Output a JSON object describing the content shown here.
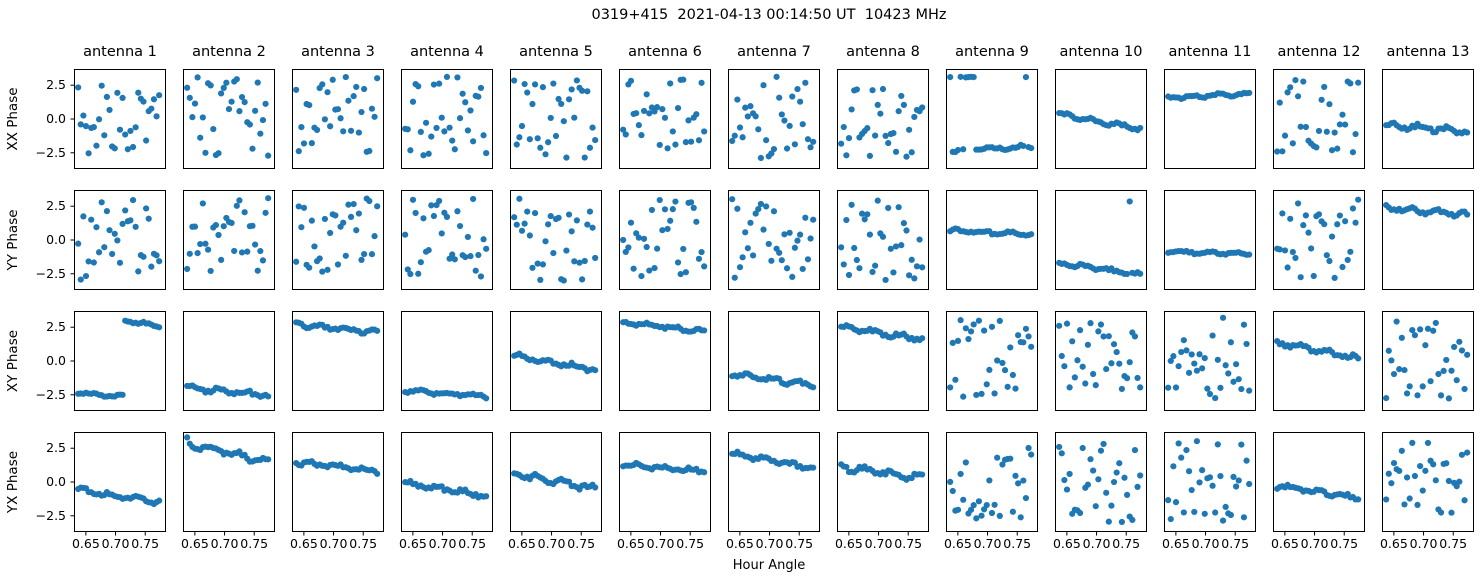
{
  "title": "0319+415  2021-04-13 00:14:50 UT  10423 MHz",
  "chart_data": {
    "type": "scatter",
    "layout": "grid-4x13",
    "rows": [
      "XX Phase",
      "YY Phase",
      "XY Phase",
      "YX Phase"
    ],
    "columns": [
      "antenna 1",
      "antenna 2",
      "antenna 3",
      "antenna 4",
      "antenna 5",
      "antenna 6",
      "antenna 7",
      "antenna 8",
      "antenna 9",
      "antenna 10",
      "antenna 11",
      "antenna 12",
      "antenna 13"
    ],
    "xlabel": "Hour Angle",
    "x_ticks": [
      0.65,
      0.7,
      0.75
    ],
    "y_ticks": [
      2.5,
      0.0,
      -2.5
    ],
    "xlim": [
      0.63,
      0.785
    ],
    "ylim": [
      -3.7,
      3.7
    ],
    "x_range": [
      0.637,
      0.7735
    ],
    "n_points": 32,
    "marker_color": "#1f77b4",
    "grid": false,
    "panels": [
      {
        "pol": "XX",
        "antenna": 1,
        "pattern": "random",
        "y_min": -3.0,
        "y_max": 3.15
      },
      {
        "pol": "XX",
        "antenna": 2,
        "pattern": "random",
        "y_min": -3.0,
        "y_max": 3.15
      },
      {
        "pol": "XX",
        "antenna": 3,
        "pattern": "random",
        "y_min": -3.0,
        "y_max": 3.15
      },
      {
        "pol": "XX",
        "antenna": 4,
        "pattern": "random",
        "y_min": -3.0,
        "y_max": 3.15
      },
      {
        "pol": "XX",
        "antenna": 5,
        "pattern": "random",
        "y_min": -3.0,
        "y_max": 3.0
      },
      {
        "pol": "XX",
        "antenna": 6,
        "pattern": "random",
        "y_min": -2.9,
        "y_max": 3.15
      },
      {
        "pol": "XX",
        "antenna": 7,
        "pattern": "random",
        "y_min": -3.0,
        "y_max": 3.15
      },
      {
        "pol": "XX",
        "antenna": 8,
        "pattern": "random",
        "y_min": -3.0,
        "y_max": 3.1
      },
      {
        "pol": "XX",
        "antenna": 9,
        "pattern": "trend",
        "y_start": -2.35,
        "y_end": -2.05,
        "jitter": 0.16,
        "outliers": [
          [
            0,
            3.1
          ],
          [
            4,
            3.12
          ],
          [
            6,
            3.08
          ],
          [
            7,
            3.1
          ],
          [
            8,
            3.12
          ],
          [
            9,
            3.1
          ],
          [
            29,
            3.1
          ]
        ]
      },
      {
        "pol": "XX",
        "antenna": 10,
        "pattern": "trend",
        "y_start": 0.35,
        "y_end": -0.75,
        "jitter": 0.18
      },
      {
        "pol": "XX",
        "antenna": 11,
        "pattern": "trend",
        "y_start": 1.6,
        "y_end": 1.85,
        "jitter": 0.13
      },
      {
        "pol": "XX",
        "antenna": 12,
        "pattern": "random",
        "y_min": -3.0,
        "y_max": 3.1
      },
      {
        "pol": "XX",
        "antenna": 13,
        "pattern": "trend",
        "y_start": -0.4,
        "y_end": -0.9,
        "jitter": 0.25
      },
      {
        "pol": "YY",
        "antenna": 1,
        "pattern": "random",
        "y_min": -3.0,
        "y_max": 3.1
      },
      {
        "pol": "YY",
        "antenna": 2,
        "pattern": "random",
        "y_min": -3.0,
        "y_max": 3.1
      },
      {
        "pol": "YY",
        "antenna": 3,
        "pattern": "random",
        "y_min": -2.6,
        "y_max": 3.1
      },
      {
        "pol": "YY",
        "antenna": 4,
        "pattern": "random",
        "y_min": -3.0,
        "y_max": 3.1
      },
      {
        "pol": "YY",
        "antenna": 5,
        "pattern": "random",
        "y_min": -3.0,
        "y_max": 3.1
      },
      {
        "pol": "YY",
        "antenna": 6,
        "pattern": "random",
        "y_min": -3.0,
        "y_max": 3.1
      },
      {
        "pol": "YY",
        "antenna": 7,
        "pattern": "random",
        "y_min": -3.0,
        "y_max": 3.1
      },
      {
        "pol": "YY",
        "antenna": 8,
        "pattern": "random",
        "y_min": -3.0,
        "y_max": 3.1
      },
      {
        "pol": "YY",
        "antenna": 9,
        "pattern": "trend",
        "y_start": 0.7,
        "y_end": 0.4,
        "jitter": 0.15
      },
      {
        "pol": "YY",
        "antenna": 10,
        "pattern": "trend",
        "y_start": -1.7,
        "y_end": -2.6,
        "jitter": 0.16,
        "outliers": [
          [
            27,
            2.85
          ]
        ]
      },
      {
        "pol": "YY",
        "antenna": 11,
        "pattern": "trend",
        "y_start": -0.85,
        "y_end": -1.05,
        "jitter": 0.11
      },
      {
        "pol": "YY",
        "antenna": 12,
        "pattern": "random",
        "y_min": -3.0,
        "y_max": 3.1
      },
      {
        "pol": "YY",
        "antenna": 13,
        "pattern": "trend",
        "y_start": 2.4,
        "y_end": 1.85,
        "jitter": 0.2
      },
      {
        "pol": "XY",
        "antenna": 1,
        "pattern": "split",
        "break_t": 0.57,
        "left": {
          "y_start": -2.35,
          "y_end": -2.65
        },
        "right": {
          "y_start": 3.0,
          "y_end": 2.6
        },
        "jitter": 0.13
      },
      {
        "pol": "XY",
        "antenna": 2,
        "pattern": "trend",
        "y_start": -1.95,
        "y_end": -2.55,
        "jitter": 0.2
      },
      {
        "pol": "XY",
        "antenna": 3,
        "pattern": "trend",
        "y_start": 2.75,
        "y_end": 2.1,
        "jitter": 0.18
      },
      {
        "pol": "XY",
        "antenna": 4,
        "pattern": "trend",
        "y_start": -2.2,
        "y_end": -2.6,
        "jitter": 0.15
      },
      {
        "pol": "XY",
        "antenna": 5,
        "pattern": "trend",
        "y_start": 0.4,
        "y_end": -0.65,
        "jitter": 0.18
      },
      {
        "pol": "XY",
        "antenna": 6,
        "pattern": "trend",
        "y_start": 2.85,
        "y_end": 2.2,
        "jitter": 0.15
      },
      {
        "pol": "XY",
        "antenna": 7,
        "pattern": "trend",
        "y_start": -1.0,
        "y_end": -1.8,
        "jitter": 0.2
      },
      {
        "pol": "XY",
        "antenna": 8,
        "pattern": "trend",
        "y_start": 2.5,
        "y_end": 1.6,
        "jitter": 0.2
      },
      {
        "pol": "XY",
        "antenna": 9,
        "pattern": "random",
        "y_min": -2.8,
        "y_max": 3.1
      },
      {
        "pol": "XY",
        "antenna": 10,
        "pattern": "random",
        "y_min": -2.9,
        "y_max": 3.0
      },
      {
        "pol": "XY",
        "antenna": 11,
        "pattern": "random",
        "y_min": -2.8,
        "y_max": 3.2
      },
      {
        "pol": "XY",
        "antenna": 12,
        "pattern": "trend",
        "y_start": 1.35,
        "y_end": 0.2,
        "jitter": 0.2
      },
      {
        "pol": "XY",
        "antenna": 13,
        "pattern": "random",
        "y_min": -2.9,
        "y_max": 3.0
      },
      {
        "pol": "YX",
        "antenna": 1,
        "pattern": "trend",
        "y_start": -0.6,
        "y_end": -1.5,
        "jitter": 0.2
      },
      {
        "pol": "YX",
        "antenna": 2,
        "pattern": "trend",
        "y_start": 2.85,
        "y_end": 1.5,
        "jitter": 0.25,
        "outliers": [
          [
            0,
            3.3
          ]
        ]
      },
      {
        "pol": "YX",
        "antenna": 3,
        "pattern": "trend",
        "y_start": 1.45,
        "y_end": 0.8,
        "jitter": 0.2
      },
      {
        "pol": "YX",
        "antenna": 4,
        "pattern": "trend",
        "y_start": -0.1,
        "y_end": -1.0,
        "jitter": 0.2
      },
      {
        "pol": "YX",
        "antenna": 5,
        "pattern": "trend",
        "y_start": 0.6,
        "y_end": -0.5,
        "jitter": 0.25
      },
      {
        "pol": "YX",
        "antenna": 6,
        "pattern": "trend",
        "y_start": 1.3,
        "y_end": 0.8,
        "jitter": 0.16
      },
      {
        "pol": "YX",
        "antenna": 7,
        "pattern": "trend",
        "y_start": 2.1,
        "y_end": 1.0,
        "jitter": 0.2
      },
      {
        "pol": "YX",
        "antenna": 8,
        "pattern": "trend",
        "y_start": 1.1,
        "y_end": 0.3,
        "jitter": 0.25
      },
      {
        "pol": "YX",
        "antenna": 9,
        "pattern": "random",
        "y_min": -2.9,
        "y_max": 3.0
      },
      {
        "pol": "YX",
        "antenna": 10,
        "pattern": "random",
        "y_min": -3.0,
        "y_max": 3.0
      },
      {
        "pol": "YX",
        "antenna": 11,
        "pattern": "random",
        "y_min": -2.9,
        "y_max": 3.1
      },
      {
        "pol": "YX",
        "antenna": 12,
        "pattern": "trend",
        "y_start": -0.25,
        "y_end": -1.2,
        "jitter": 0.2
      },
      {
        "pol": "YX",
        "antenna": 13,
        "pattern": "random",
        "y_min": -2.6,
        "y_max": 3.0
      }
    ]
  }
}
